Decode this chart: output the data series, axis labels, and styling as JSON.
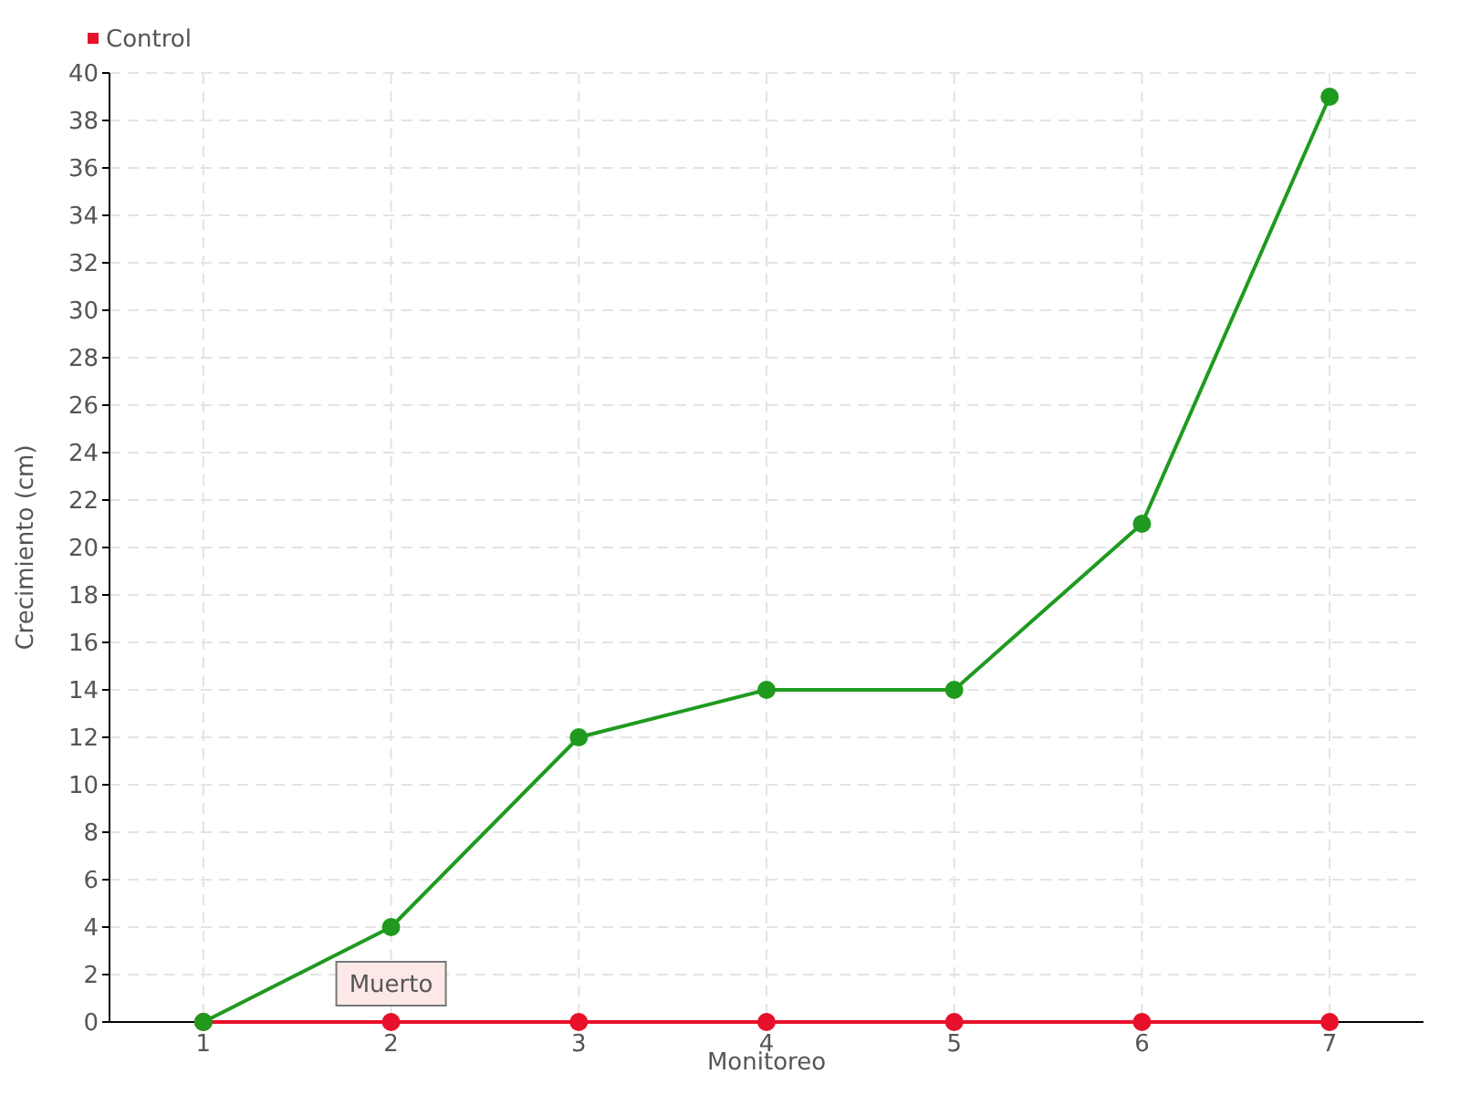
{
  "chart_data": {
    "type": "line",
    "xlabel": "Monitoreo",
    "ylabel": "Crecimiento (cm)",
    "categories": [
      "1",
      "2",
      "3",
      "4",
      "5",
      "6",
      "7"
    ],
    "series": [
      {
        "color": "#1f9a1f",
        "values": [
          0,
          4,
          12,
          14,
          14,
          21,
          39
        ]
      },
      {
        "name": "Control",
        "color": "#e8102a",
        "values": [
          0,
          0,
          0,
          0,
          0,
          0,
          0
        ]
      }
    ],
    "ylim": [
      0,
      40
    ],
    "yticks": [
      0,
      2,
      4,
      6,
      8,
      10,
      12,
      14,
      16,
      18,
      20,
      22,
      24,
      26,
      28,
      30,
      32,
      34,
      36,
      38,
      40
    ],
    "grid": true,
    "legend": "top left",
    "marker": "circle",
    "line_style": "solid",
    "annotations": [
      {
        "text": "Muerto",
        "x": "2",
        "y": 0
      }
    ]
  }
}
